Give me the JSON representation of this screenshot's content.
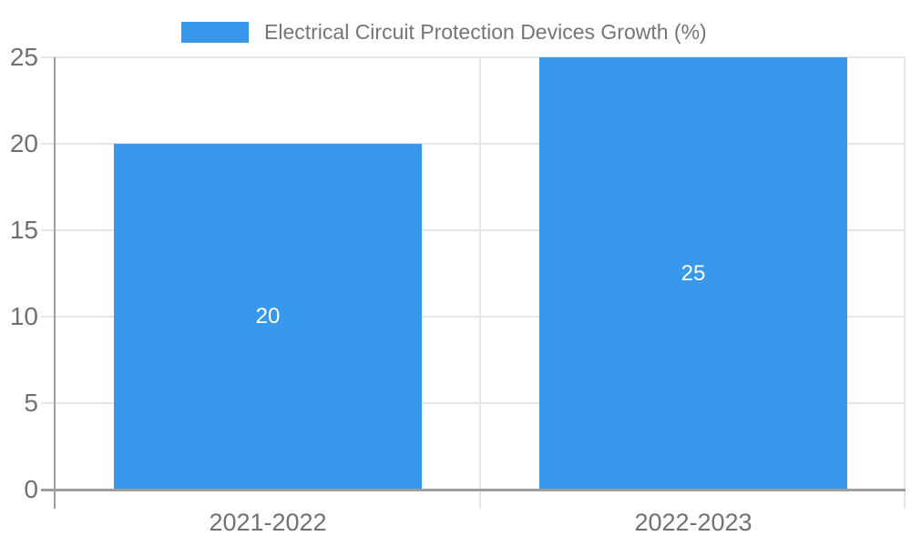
{
  "chart_data": {
    "type": "bar",
    "title": "Electrical Circuit Protection Devices Growth (%)",
    "legend": {
      "position": "top",
      "entries": [
        "Electrical Circuit Protection Devices Growth (%)"
      ]
    },
    "categories": [
      "2021-2022",
      "2022-2023"
    ],
    "series": [
      {
        "name": "Electrical Circuit Protection Devices Growth (%)",
        "values": [
          20,
          25
        ]
      }
    ],
    "value_labels_inside_bars": [
      "20",
      "25"
    ],
    "xlabel": "",
    "ylabel": "",
    "ylim": [
      0,
      25
    ],
    "yticks": [
      0,
      5,
      10,
      15,
      20,
      25
    ],
    "grid": true,
    "bar_width_fraction": 0.723
  },
  "colors": {
    "bar": "#3899EC",
    "gridline": "#E6E6E6",
    "axis": "#9E9E9E",
    "tick_text": "#717171",
    "legend_text": "#757575",
    "value_label_text": "#FFFFFF"
  }
}
